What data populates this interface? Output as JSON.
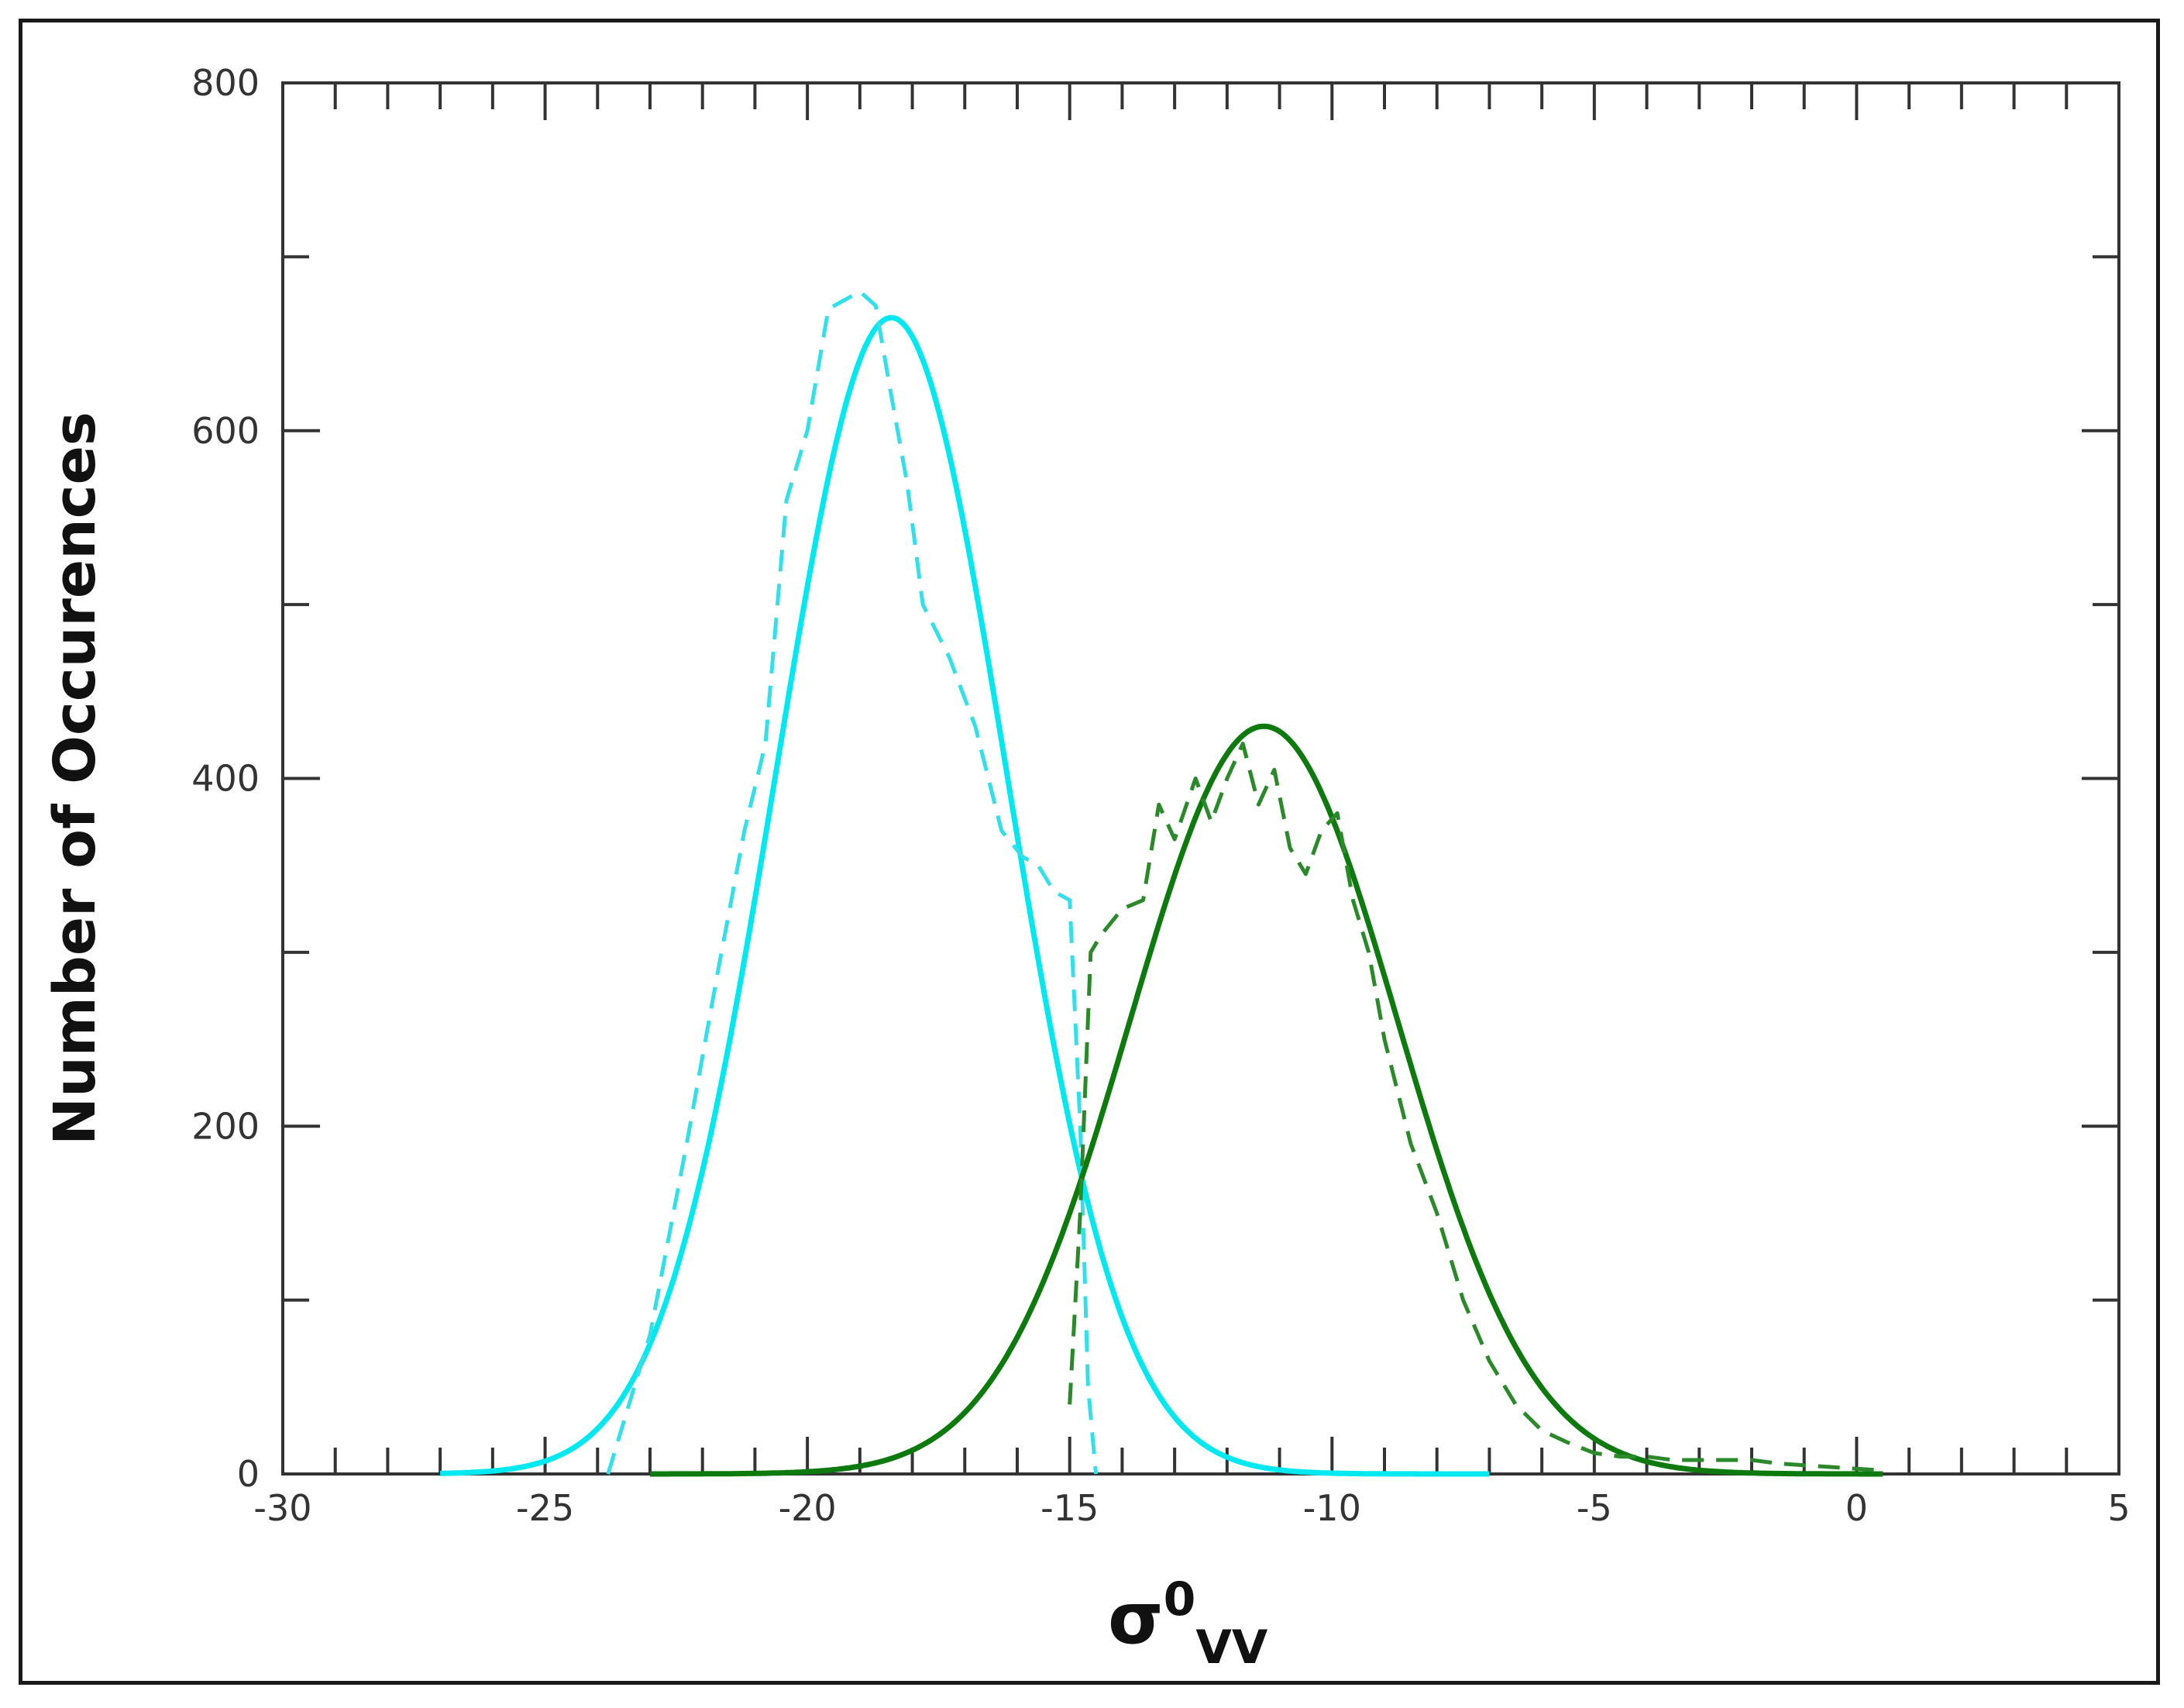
{
  "chart_data": {
    "type": "line",
    "title": "",
    "xlabel": {
      "base": "σ",
      "sup": "0",
      "sub": "VV"
    },
    "ylabel": "Number of Occurences",
    "xlim": [
      -30,
      5
    ],
    "ylim": [
      0,
      800
    ],
    "grid": false,
    "x_ticks": [
      -30,
      -25,
      -20,
      -15,
      -10,
      -5,
      0,
      5
    ],
    "x_tick_labels": [
      "-30",
      "-25",
      "-20",
      "-15",
      "-10",
      "-5",
      "0",
      "5"
    ],
    "y_ticks": [
      0,
      200,
      400,
      600,
      800
    ],
    "y_tick_labels": [
      "0",
      "200",
      "400",
      "600",
      "800"
    ],
    "series": [
      {
        "style": "solid",
        "color": "#00e8f0",
        "kind": "gaussian-fit",
        "mean": -18.4,
        "sigma": 2.2,
        "peak": 665,
        "x_range": [
          -27,
          -7
        ]
      },
      {
        "style": "dashed",
        "color": "#33e0ea",
        "kind": "histogram",
        "x": [
          -23.8,
          -23.0,
          -22.3,
          -21.7,
          -21.2,
          -20.8,
          -20.4,
          -20.0,
          -19.6,
          -19.3,
          -19.0,
          -18.7,
          -18.4,
          -18.1,
          -17.8,
          -17.3,
          -16.8,
          -16.3,
          -15.9,
          -15.6,
          -15.3,
          -15.0,
          -14.8,
          -14.65,
          -14.5
        ],
        "y": [
          0,
          80,
          190,
          290,
          370,
          420,
          560,
          600,
          670,
          675,
          680,
          672,
          620,
          570,
          500,
          470,
          430,
          370,
          355,
          350,
          335,
          330,
          200,
          50,
          0
        ]
      },
      {
        "style": "solid",
        "color": "#0d7a0d",
        "kind": "gaussian-fit",
        "mean": -11.3,
        "sigma": 2.55,
        "peak": 430,
        "x_range": [
          -23,
          0.5
        ]
      },
      {
        "style": "dashed",
        "color": "#2a8a2a",
        "kind": "histogram",
        "x": [
          -15.0,
          -14.8,
          -14.6,
          -14.4,
          -14.0,
          -13.6,
          -13.3,
          -13.0,
          -12.6,
          -12.3,
          -12.0,
          -11.7,
          -11.4,
          -11.1,
          -10.8,
          -10.5,
          -10.2,
          -9.9,
          -9.6,
          -9.3,
          -9.0,
          -8.5,
          -8.0,
          -7.5,
          -7.0,
          -6.5,
          -6.0,
          -5.5,
          -5.0,
          -4.5,
          -4.0,
          -3.5,
          -3.0,
          -2.5,
          -2.0,
          -1.5,
          -1.0,
          -0.5,
          0.0,
          0.5
        ],
        "y": [
          40,
          150,
          300,
          310,
          325,
          330,
          385,
          365,
          400,
          375,
          400,
          420,
          385,
          405,
          360,
          345,
          370,
          380,
          330,
          300,
          250,
          190,
          150,
          100,
          65,
          40,
          25,
          18,
          12,
          10,
          10,
          8,
          8,
          8,
          8,
          6,
          5,
          4,
          3,
          2
        ]
      }
    ]
  }
}
